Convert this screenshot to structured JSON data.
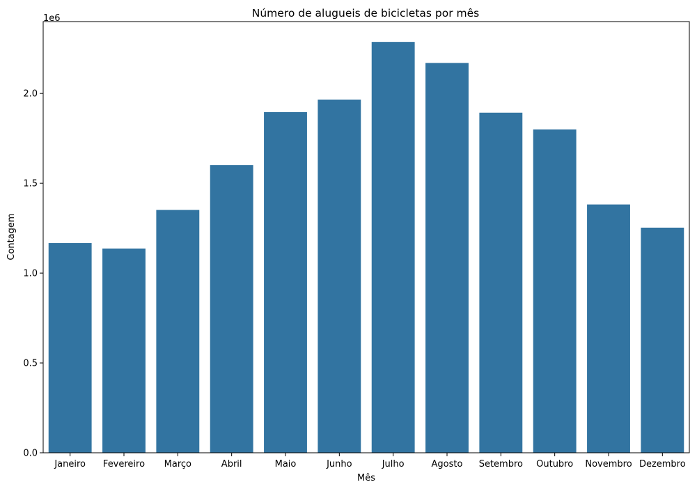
{
  "chart_data": {
    "type": "bar",
    "title": "Número de alugueis de bicicletas por mês",
    "xlabel": "Mês",
    "ylabel": "Contagem",
    "y_offset_label": "1e6",
    "categories": [
      "Janeiro",
      "Fevereiro",
      "Março",
      "Abril",
      "Maio",
      "Junho",
      "Julho",
      "Agosto",
      "Setembro",
      "Outubro",
      "Novembro",
      "Dezembro"
    ],
    "values": [
      1167000,
      1137000,
      1352000,
      1601000,
      1896000,
      1966000,
      2287000,
      2170000,
      1893000,
      1800000,
      1382000,
      1253000
    ],
    "ylim": [
      0,
      2400000
    ],
    "yticks": [
      0.0,
      0.5,
      1.0,
      1.5,
      2.0
    ],
    "ytick_labels": [
      "0.0",
      "0.5",
      "1.0",
      "1.5",
      "2.0"
    ],
    "ytick_scale": 1000000,
    "grid": false,
    "bar_color": "#3274a1"
  }
}
